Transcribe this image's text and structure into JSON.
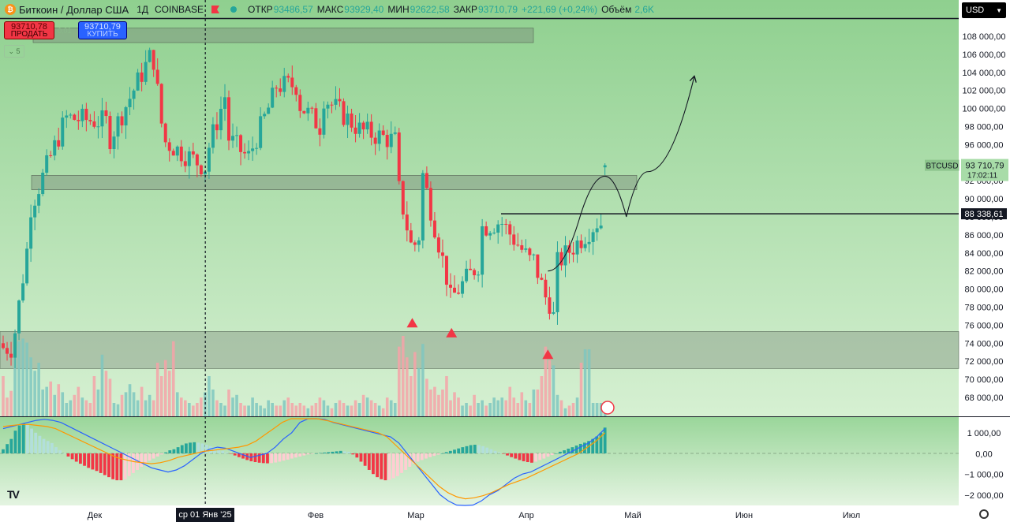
{
  "header": {
    "symbol_title": "Биткоин / Доллар США",
    "interval": "1Д",
    "exchange": "COINBASE",
    "open_label": "ОТКР",
    "open_value": "93486,57",
    "high_label": "МАКС",
    "high_value": "93929,40",
    "low_label": "МИН",
    "low_value": "92622,58",
    "close_label": "ЗАКР",
    "close_value": "93710,79",
    "change_value": "+221,69 (+0,24%)",
    "volume_label": "Объём",
    "volume_value": "2,6K",
    "currency": "USD"
  },
  "trade": {
    "sell_price": "93710,78",
    "sell_label": "ПРОДАТЬ",
    "buy_price": "93710,79",
    "buy_label": "КУПИТЬ",
    "spread": "0,01",
    "collapse_count": "5"
  },
  "colors": {
    "up": "#26a69a",
    "down": "#f23645",
    "macd_line": "#2962ff",
    "signal_line": "#ff9800",
    "background_top": "#8fd08f",
    "background_bottom": "#d6f0d2"
  },
  "chart_data": [
    {
      "type": "candlestick",
      "title": "BTCUSD 1Д COINBASE",
      "price_axis_ticks": [
        "108 000,00",
        "106 000,00",
        "104 000,00",
        "102 000,00",
        "100 000,00",
        "98 000,00",
        "96 000,00",
        "94 000,00",
        "92 000,00",
        "90 000,00",
        "88 000,00",
        "86 000,00",
        "84 000,00",
        "82 000,00",
        "80 000,00",
        "78 000,00",
        "76 000,00",
        "74 000,00",
        "72 000,00",
        "70 000,00",
        "68 000,00"
      ],
      "time_axis_labels": [
        "Дек",
        "Фев",
        "Мар",
        "Апр",
        "Май",
        "Июн",
        "Июл"
      ],
      "crosshair_date": "ср 01 Янв '25",
      "last_price_symbol": "BTCUSD",
      "last_price": "93 710,79",
      "countdown": "17:02:11",
      "horizontal_level": "88 338,61",
      "ylim": [
        66500,
        110000
      ],
      "zones": [
        {
          "from": 107300,
          "to": 108900
        },
        {
          "from": 91000,
          "to": 92600
        },
        {
          "from": 71200,
          "to": 75300
        }
      ],
      "support_markers": [
        {
          "date": "2025-02-28",
          "price": 77500
        },
        {
          "date": "2025-03-11",
          "price": 76400
        },
        {
          "date": "2025-04-07",
          "price": 74000
        }
      ],
      "candles": [
        [
          "2024-11-08",
          74000,
          73500,
          75500,
          72400
        ],
        [
          "2024-11-13",
          87000,
          89000,
          91200,
          85700
        ],
        [
          "2024-11-22",
          98000,
          99000,
          100200,
          97000
        ],
        [
          "2024-12-05",
          98500,
          96500,
          103800,
          92000
        ],
        [
          "2024-12-17",
          106100,
          107000,
          108200,
          105300
        ],
        [
          "2024-12-20",
          97500,
          96500,
          98500,
          92300
        ],
        [
          "2025-01-01",
          93500,
          94500,
          95000,
          92700
        ],
        [
          "2025-01-07",
          102000,
          96900,
          102700,
          96000
        ],
        [
          "2025-01-13",
          94500,
          94500,
          95900,
          89200
        ],
        [
          "2025-01-20",
          101300,
          102500,
          109000,
          99500
        ],
        [
          "2025-01-27",
          102600,
          100600,
          102700,
          97800
        ],
        [
          "2025-02-03",
          97700,
          101300,
          102500,
          91200
        ],
        [
          "2025-02-14",
          97400,
          97500,
          98800,
          96900
        ],
        [
          "2025-02-24",
          96300,
          91500,
          96500,
          91000
        ],
        [
          "2025-02-28",
          84200,
          84400,
          85000,
          78200
        ],
        [
          "2025-03-02",
          86000,
          94300,
          95000,
          85000
        ],
        [
          "2025-03-10",
          80700,
          78500,
          81200,
          76600
        ],
        [
          "2025-03-19",
          83000,
          86800,
          87000,
          82200
        ],
        [
          "2025-03-25",
          87500,
          87400,
          88700,
          86300
        ],
        [
          "2025-04-03",
          82600,
          83200,
          83900,
          81200
        ],
        [
          "2025-04-07",
          78300,
          79200,
          81200,
          74400
        ],
        [
          "2025-04-09",
          76300,
          82600,
          83500,
          74600
        ],
        [
          "2025-04-21",
          87500,
          87300,
          88500,
          84500
        ],
        [
          "2025-04-22",
          87300,
          93400,
          93800,
          87100
        ],
        [
          "2025-04-23",
          93486.57,
          93710.79,
          93929.4,
          92622.58
        ]
      ],
      "projection_path": [
        [
          "2025-04-07",
          82000
        ],
        [
          "2025-04-16",
          88000
        ],
        [
          "2025-04-23",
          92500
        ],
        [
          "2025-04-29",
          88000
        ],
        [
          "2025-05-05",
          93000
        ],
        [
          "2025-05-18",
          103500
        ]
      ]
    },
    {
      "type": "histogram",
      "title": "Volume",
      "series": [
        {
          "values": [
            30,
            14,
            19,
            54,
            56,
            58,
            55,
            44,
            34,
            40,
            20,
            22,
            26,
            16,
            24,
            18,
            10,
            12,
            16,
            22,
            14,
            12,
            10,
            30,
            20,
            46,
            34,
            28,
            10,
            9,
            16,
            18,
            24,
            18,
            12,
            22,
            12,
            16,
            12,
            40,
            30,
            42,
            34,
            56,
            18,
            14,
            12,
            10,
            8,
            10,
            14,
            18,
            30,
            20,
            12,
            10,
            8,
            20,
            14,
            16,
            10,
            8,
            8,
            14,
            10,
            8,
            6,
            12,
            10,
            8,
            8,
            12,
            14,
            10,
            8,
            10,
            8,
            6,
            8,
            10,
            14,
            12,
            8,
            6,
            10,
            12,
            10,
            8,
            8,
            12,
            10,
            16,
            14,
            12,
            10,
            8,
            6,
            14,
            12,
            10,
            52,
            60,
            44,
            30,
            48,
            36,
            54,
            28,
            20,
            22,
            16,
            20,
            30,
            12,
            18,
            14,
            8,
            10,
            8,
            16,
            10,
            12,
            8,
            10,
            14,
            12,
            14,
            12,
            22,
            14,
            10,
            18,
            12,
            10,
            20,
            20,
            30,
            52,
            42,
            38,
            16,
            12,
            6,
            8,
            10,
            14,
            40,
            50,
            50
          ]
        }
      ]
    },
    {
      "type": "line",
      "title": "MACD",
      "y_axis_ticks": [
        "1 000,00",
        "0,00",
        "−1 000,00",
        "−2 000,00"
      ],
      "ylim": [
        -2500,
        1300
      ],
      "series": [
        {
          "name": "Histogram",
          "values": [
            200,
            450,
            700,
            1100,
            1350,
            1450,
            1400,
            1200,
            1000,
            850,
            700,
            600,
            500,
            300,
            150,
            0,
            -150,
            -280,
            -400,
            -500,
            -600,
            -700,
            -780,
            -850,
            -950,
            -1050,
            -1150,
            -1250,
            -1300,
            -1300,
            -1250,
            -1100,
            -950,
            -800,
            -650,
            -500,
            -350,
            -250,
            -150,
            -50,
            50,
            150,
            200,
            300,
            400,
            480,
            520,
            540,
            520,
            480,
            420,
            350,
            280,
            200,
            120,
            50,
            -20,
            -100,
            -180,
            -250,
            -320,
            -380,
            -420,
            -450,
            -470,
            -480,
            -470,
            -440,
            -400,
            -350,
            -300,
            -250,
            -200,
            -150,
            -100,
            -50,
            -20,
            0,
            20,
            40,
            60,
            80,
            100,
            120,
            100,
            80,
            -50,
            -200,
            -400,
            -600,
            -800,
            -1000,
            -1150,
            -1250,
            -1300,
            -1280,
            -1200,
            -1100,
            -950,
            -800,
            -650,
            -500,
            -400,
            -320,
            -250,
            -180,
            -120,
            -60,
            0,
            60,
            120,
            180,
            240,
            300,
            350,
            400,
            420,
            400,
            350,
            280,
            200,
            120,
            50,
            -20,
            -100,
            -180,
            -250,
            -320,
            -380,
            -420,
            -450,
            -400,
            -320,
            -250,
            -160,
            -80,
            0,
            80,
            150,
            230,
            300,
            380,
            460,
            520,
            600,
            700,
            820,
            1000,
            1250
          ]
        },
        {
          "name": "MACD",
          "values": [
            1200,
            1300,
            1400,
            1500,
            1600,
            1650,
            1600,
            1500,
            1300,
            1100,
            900,
            700,
            500,
            300,
            100,
            -100,
            -300,
            -500,
            -700,
            -800,
            -900,
            -800,
            -600,
            -300,
            0,
            200,
            300,
            250,
            100,
            -50,
            -200,
            -100,
            0,
            300,
            700,
            1000,
            1500,
            1800,
            1800,
            1650,
            1500,
            1400,
            1300,
            1200,
            1100,
            1000,
            900,
            800,
            500,
            0,
            -500,
            -1000,
            -1500,
            -2000,
            -2300,
            -2500,
            -2600,
            -2500,
            -2300,
            -2000,
            -1800,
            -1500,
            -1200,
            -1000,
            -900,
            -700,
            -500,
            -300,
            -100,
            100,
            300,
            500,
            800,
            1200
          ]
        },
        {
          "name": "Signal",
          "values": [
            1300,
            1350,
            1400,
            1400,
            1350,
            1300,
            1200,
            1000,
            800,
            600,
            400,
            200,
            0,
            -200,
            -300,
            -400,
            -450,
            -500,
            -450,
            -350,
            -200,
            -100,
            0,
            100,
            150,
            200,
            250,
            300,
            400,
            600,
            900,
            1200,
            1500,
            1700,
            1800,
            1800,
            1700,
            1600,
            1500,
            1400,
            1300,
            1200,
            1100,
            1000,
            800,
            400,
            0,
            -400,
            -800,
            -1200,
            -1600,
            -1900,
            -2100,
            -2200,
            -2150,
            -2050,
            -1900,
            -1700,
            -1500,
            -1350,
            -1200,
            -1000,
            -800,
            -600,
            -400,
            -200,
            0,
            300,
            600,
            1000
          ]
        }
      ]
    }
  ]
}
